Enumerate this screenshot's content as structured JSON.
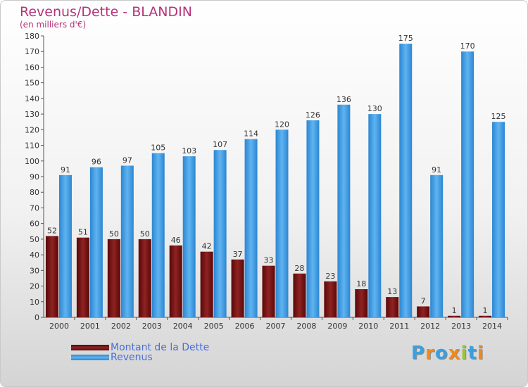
{
  "chart_data": {
    "type": "bar",
    "title": "Revenus/Dette - BLANDIN",
    "subtitle": "(en milliers d'€)",
    "categories": [
      "2000",
      "2001",
      "2002",
      "2003",
      "2004",
      "2005",
      "2006",
      "2007",
      "2008",
      "2009",
      "2010",
      "2011",
      "2012",
      "2013",
      "2014"
    ],
    "series": [
      {
        "name": "Montant de la Dette",
        "color": "#7a1212",
        "values": [
          52,
          51,
          50,
          50,
          46,
          42,
          37,
          33,
          28,
          23,
          18,
          13,
          7,
          1,
          1
        ]
      },
      {
        "name": "Revenus",
        "color": "#4aa3e8",
        "values": [
          91,
          96,
          97,
          105,
          103,
          107,
          114,
          120,
          126,
          136,
          130,
          175,
          91,
          170,
          125
        ]
      }
    ],
    "ylim": [
      0,
      180
    ],
    "yticks": [
      0,
      10,
      20,
      30,
      40,
      50,
      60,
      70,
      80,
      90,
      100,
      110,
      120,
      130,
      140,
      150,
      160,
      170,
      180
    ],
    "grid": false,
    "legend_position": "bottom-left"
  },
  "logo": {
    "letters": [
      "P",
      "r",
      "o",
      "x",
      "i",
      "t",
      "i"
    ],
    "colors": [
      "#3aa0e0",
      "#f08a1c",
      "#3aa0e0",
      "#f08a1c",
      "#9ac53c",
      "#3aa0e0",
      "#f08a1c"
    ]
  }
}
